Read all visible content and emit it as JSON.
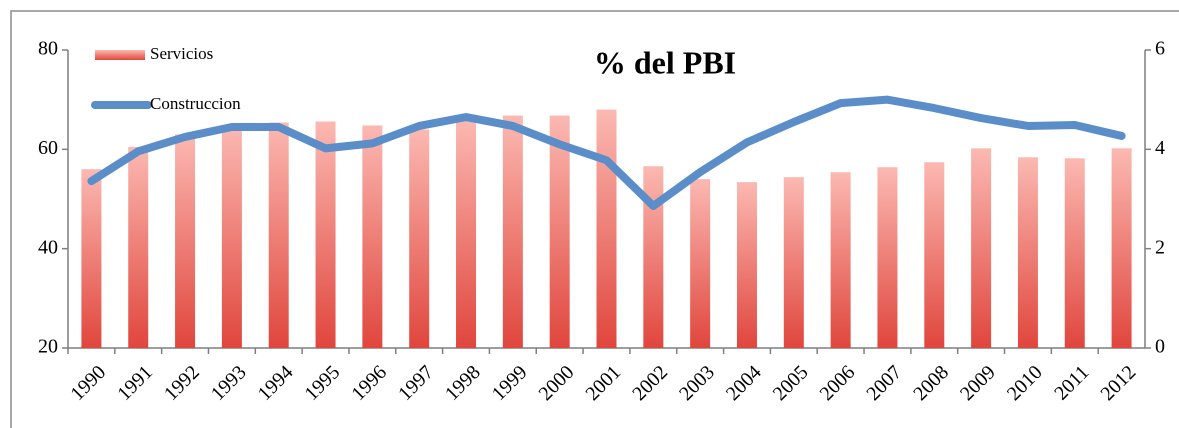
{
  "chart_data": {
    "type": "bar",
    "title": "% del PBI",
    "categories": [
      "1990",
      "1991",
      "1992",
      "1993",
      "1994",
      "1995",
      "1996",
      "1997",
      "1998",
      "1999",
      "2000",
      "2001",
      "2002",
      "2003",
      "2004",
      "2005",
      "2006",
      "2007",
      "2008",
      "2009",
      "2010",
      "2011",
      "2012"
    ],
    "series": [
      {
        "name": "Servicios",
        "type": "bar",
        "color": "#e0463d",
        "axis": "y",
        "values": [
          56,
          60.5,
          63,
          64.6,
          65.4,
          65.6,
          64.8,
          64,
          66,
          66.8,
          66.8,
          68,
          56.6,
          54,
          53.4,
          54.4,
          55.4,
          56.4,
          57.4,
          60.2,
          58.4,
          58.2,
          60.2
        ]
      },
      {
        "name": "Construccion",
        "type": "line",
        "color": "#5b8ec9",
        "axis": "y2",
        "values": [
          3.36,
          3.96,
          4.25,
          4.45,
          4.45,
          4.02,
          4.12,
          4.47,
          4.65,
          4.47,
          4.1,
          3.78,
          2.86,
          3.54,
          4.14,
          4.55,
          4.93,
          5.0,
          4.83,
          4.63,
          4.47,
          4.49,
          4.27
        ]
      }
    ],
    "ylim": [
      20,
      80
    ],
    "yticks": [
      20,
      40,
      60,
      80
    ],
    "y2lim": [
      0,
      6
    ],
    "y2ticks": [
      0,
      2,
      4,
      6
    ]
  }
}
